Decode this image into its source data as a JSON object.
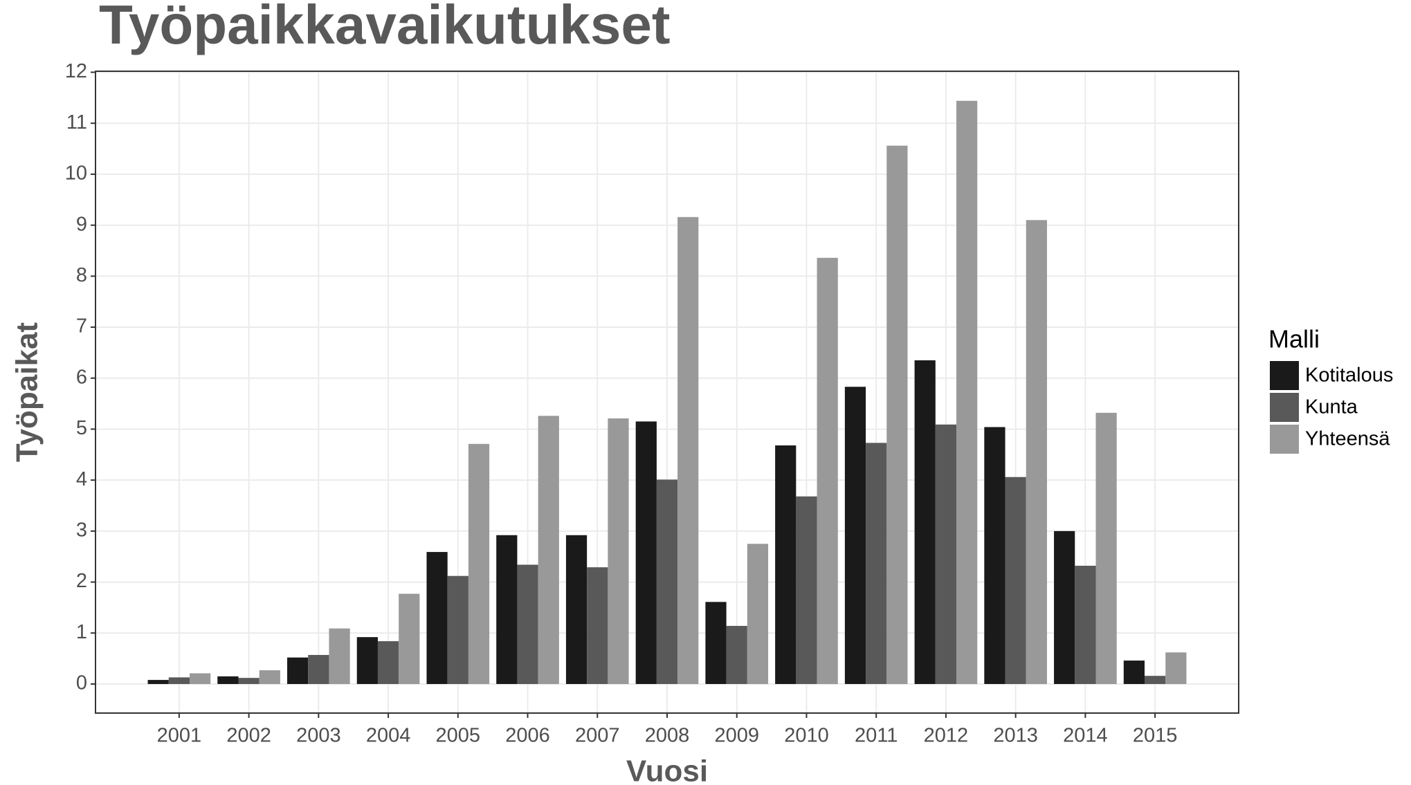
{
  "chart_data": {
    "type": "bar",
    "title": "Työpaikkavaikutukset",
    "x_label": "Vuosi",
    "y_label": "Työpaikat",
    "legend_title": "Malli",
    "categories": [
      "2001",
      "2002",
      "2003",
      "2004",
      "2005",
      "2006",
      "2007",
      "2008",
      "2009",
      "2010",
      "2011",
      "2012",
      "2013",
      "2014",
      "2015"
    ],
    "series": [
      {
        "name": "Kotitalous",
        "color": "#1a1a1a",
        "values": [
          0.08,
          0.15,
          0.52,
          0.92,
          2.59,
          2.92,
          2.92,
          5.15,
          1.61,
          4.68,
          5.83,
          6.35,
          5.04,
          3.0,
          0.46
        ]
      },
      {
        "name": "Kunta",
        "color": "#595959",
        "values": [
          0.13,
          0.12,
          0.57,
          0.84,
          2.12,
          2.34,
          2.29,
          4.01,
          1.14,
          3.68,
          4.73,
          5.09,
          4.06,
          2.32,
          0.16
        ]
      },
      {
        "name": "Yhteensä",
        "color": "#999999",
        "values": [
          0.21,
          0.27,
          1.09,
          1.77,
          4.71,
          5.26,
          5.21,
          9.16,
          2.75,
          8.36,
          10.56,
          11.44,
          9.1,
          5.32,
          0.62
        ]
      }
    ],
    "ylim": [
      -0.57,
      12.02
    ],
    "yticks": [
      0,
      1,
      2,
      3,
      4,
      5,
      6,
      7,
      8,
      9,
      10,
      11,
      12
    ],
    "grid": true,
    "legend": "right"
  }
}
